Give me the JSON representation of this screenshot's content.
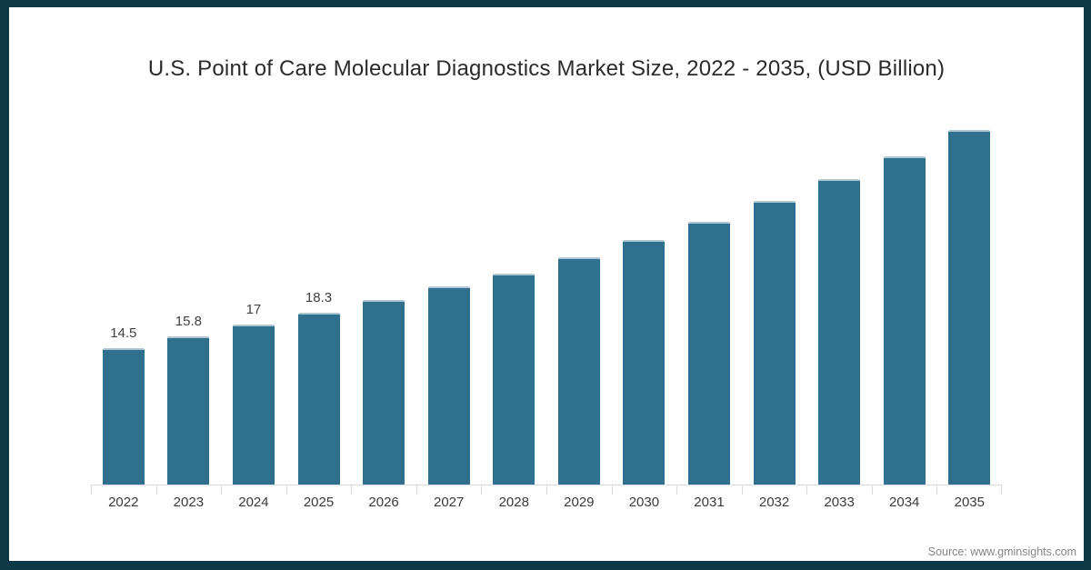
{
  "chart_data": {
    "type": "bar",
    "title": "U.S. Point of Care Molecular Diagnostics Market Size, 2022 - 2035, (USD Billion)",
    "categories": [
      "2022",
      "2023",
      "2024",
      "2025",
      "2026",
      "2027",
      "2028",
      "2029",
      "2030",
      "2031",
      "2032",
      "2033",
      "2034",
      "2035"
    ],
    "values": [
      14.5,
      15.8,
      17,
      18.3,
      19.7,
      21.1,
      22.5,
      24.2,
      26.1,
      28,
      30.2,
      32.5,
      35,
      37.8
    ],
    "data_labels": [
      "14.5",
      "15.8",
      "17",
      "18.3",
      "",
      "",
      "",
      "",
      "",
      "",
      "",
      "",
      "",
      ""
    ],
    "xlabel": "",
    "ylabel": "",
    "ylim": [
      0,
      40
    ],
    "grid": false,
    "legend": false,
    "legend_position": "none",
    "bar_color": "#30708f",
    "bar_cap_color": "#aec5d2",
    "axis_color": "#d7dbe0",
    "value_label_color": "#3f3f3f",
    "tick_label_color": "#3a3a3a",
    "title_color": "#2b2b2b"
  },
  "frame": {
    "border_color": "#0c3945",
    "background": "#ffffff"
  },
  "source": {
    "label": "Source: www.gminsights.com",
    "color": "#868686"
  }
}
